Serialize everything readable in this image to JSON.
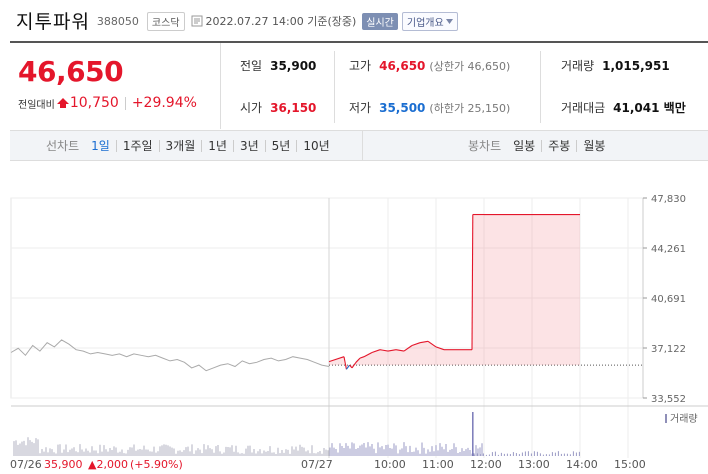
{
  "header": {
    "name": "지투파워",
    "code": "388050",
    "market": "코스닥",
    "datetime": "2022.07.27 14:00 기준(장중)",
    "live_badge": "실시간",
    "info_button": "기업개요"
  },
  "price": {
    "current": "46,650",
    "change_label": "전일대비",
    "change_value": "10,750",
    "change_pct": "+29.94%"
  },
  "stats": {
    "prev_label": "전일",
    "prev_value": "35,900",
    "high_label": "고가",
    "high_value": "46,650",
    "upper_limit": "(상한가 46,650)",
    "volume_label": "거래량",
    "volume_value": "1,015,951",
    "open_label": "시가",
    "open_value": "36,150",
    "low_label": "저가",
    "low_value": "35,500",
    "lower_limit": "(하한가 25,150)",
    "amount_label": "거래대금",
    "amount_value": "41,041 백만"
  },
  "line_tabs": {
    "label": "선차트",
    "items": [
      "1일",
      "1주일",
      "3개월",
      "1년",
      "3년",
      "5년",
      "10년"
    ],
    "active": "1일"
  },
  "candle_tabs": {
    "label": "봉차트",
    "items": [
      "일봉",
      "주봉",
      "월봉"
    ]
  },
  "chart_data": {
    "type": "line",
    "y_ticks": [
      "47,830",
      "44,261",
      "40,691",
      "37,122",
      "33,552"
    ],
    "ylim": [
      33552,
      47830
    ],
    "x_ticks": [
      "07/27",
      "10:00",
      "11:00",
      "12:00",
      "13:00",
      "14:00",
      "15:00"
    ],
    "legend_volume": "거래량",
    "prev_day_footer": {
      "date": "07/26",
      "close": "35,900",
      "change": "▲2,000",
      "pct": "(+5.90%)"
    },
    "prev_close": 35900,
    "prev_day_series": [
      36800,
      37100,
      36600,
      37300,
      36900,
      37500,
      37200,
      37700,
      37400,
      37000,
      36900,
      36700,
      36800,
      36700,
      36600,
      36700,
      36500,
      36700,
      36600,
      36500,
      36600,
      36400,
      36200,
      36300,
      36100,
      35700,
      35900,
      35500,
      35700,
      35900,
      36000,
      35800,
      36200,
      36000,
      36100,
      36300,
      36400,
      36200,
      36300,
      36500,
      36400,
      36300,
      36100,
      35900,
      35800
    ],
    "today_series": [
      {
        "t": "09:00",
        "v": 36150
      },
      {
        "t": "09:05",
        "v": 36500
      },
      {
        "t": "09:08",
        "v": 35600
      },
      {
        "t": "09:12",
        "v": 35900
      },
      {
        "t": "09:15",
        "v": 35700
      },
      {
        "t": "09:20",
        "v": 36100
      },
      {
        "t": "09:25",
        "v": 36400
      },
      {
        "t": "09:30",
        "v": 36500
      },
      {
        "t": "09:40",
        "v": 36800
      },
      {
        "t": "09:50",
        "v": 37000
      },
      {
        "t": "10:00",
        "v": 36900
      },
      {
        "t": "10:10",
        "v": 37000
      },
      {
        "t": "10:20",
        "v": 36900
      },
      {
        "t": "10:30",
        "v": 37300
      },
      {
        "t": "10:40",
        "v": 37500
      },
      {
        "t": "10:50",
        "v": 37600
      },
      {
        "t": "11:00",
        "v": 37200
      },
      {
        "t": "11:10",
        "v": 37000
      },
      {
        "t": "11:20",
        "v": 37000
      },
      {
        "t": "11:30",
        "v": 37000
      },
      {
        "t": "11:40",
        "v": 37000
      },
      {
        "t": "11:45",
        "v": 37000
      },
      {
        "t": "11:46",
        "v": 46650
      },
      {
        "t": "12:00",
        "v": 46650
      },
      {
        "t": "13:00",
        "v": 46650
      },
      {
        "t": "13:30",
        "v": 46650
      },
      {
        "t": "14:00",
        "v": 46650
      }
    ],
    "grid": true
  }
}
